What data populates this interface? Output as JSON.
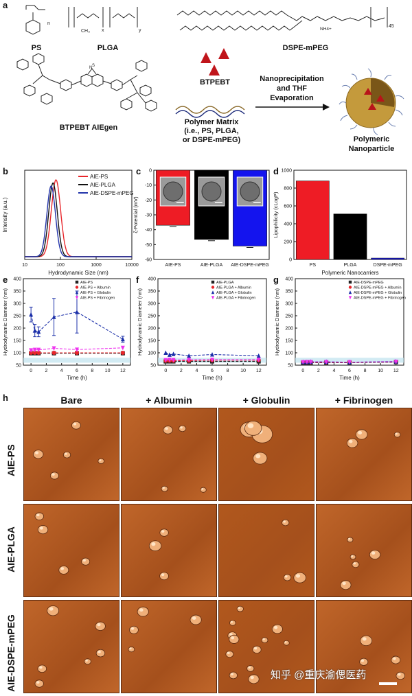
{
  "panel_a": {
    "letter": "a",
    "ps_label": "PS",
    "plga_label": "PLGA",
    "dspe_label": "DSPE-mPEG",
    "btpebt_mol_label": "BTPEBT AIEgen",
    "btpebt_label": "BTPEBT",
    "polymer_matrix_label": "Polymer Matrix",
    "polymer_matrix_sub1": "(i.e., PS, PLGA,",
    "polymer_matrix_sub2": "or DSPE-mPEG)",
    "process_label1": "Nanoprecipitation",
    "process_label2": "and THF",
    "process_label3": "Evaporation",
    "product_label1": "Polymeric",
    "product_label2": "Nanoparticle",
    "peg_repeat": "45",
    "nh4": "NH4+"
  },
  "chart_data": [
    {
      "id": "b",
      "type": "line",
      "xlabel": "Hydrodynamic Size (nm)",
      "ylabel": "Intensity (a.u.)",
      "xscale": "log",
      "xlim": [
        10,
        10000
      ],
      "xticks": [
        "10",
        "100",
        "1000",
        "10000"
      ],
      "legend": "top-right",
      "series": [
        {
          "name": "AIE-PS",
          "color": "#e8262b",
          "peak": 75,
          "width": 0.13,
          "height": 1.0
        },
        {
          "name": "AIE-PLGA",
          "color": "#111111",
          "peak": 62,
          "width": 0.12,
          "height": 0.96
        },
        {
          "name": "AIE-DSPE-mPEG",
          "color": "#2233aa",
          "peak": 55,
          "width": 0.12,
          "height": 0.92
        }
      ]
    },
    {
      "id": "c",
      "type": "bar",
      "ylabel": "ζ-Potential (mV)",
      "ylim": [
        -60,
        0
      ],
      "yticks": [
        "0",
        "-10",
        "-20",
        "-30",
        "-40",
        "-50",
        "-60"
      ],
      "categories": [
        "AIE-PS",
        "AIE-PLGA",
        "AIE-DSPE-mPEG"
      ],
      "values": [
        -37,
        -46.5,
        -51
      ],
      "colors": [
        "#ee1c25",
        "#000000",
        "#1414ee"
      ]
    },
    {
      "id": "d",
      "type": "bar",
      "ylabel": "Lipophilicity (cLogP)",
      "xlabel": "Polymeric Nanocarriers",
      "ylim": [
        0,
        1000
      ],
      "yticks": [
        "0",
        "200",
        "400",
        "600",
        "800",
        "1000"
      ],
      "categories": [
        "PS",
        "PLGA",
        "DSPE-mPEG"
      ],
      "values": [
        880,
        510,
        15
      ],
      "colors": [
        "#ee1c25",
        "#000000",
        "#1414ee"
      ]
    },
    {
      "id": "e",
      "type": "line",
      "xlabel": "Time (h)",
      "ylabel": "Hydrodynamic Diameter (nm)",
      "xlim": [
        -1,
        13
      ],
      "ylim": [
        50,
        400
      ],
      "xticks": [
        0,
        2,
        4,
        6,
        8,
        10,
        12
      ],
      "yticks": [
        50,
        100,
        150,
        200,
        250,
        300,
        350,
        400
      ],
      "legend": "top-right",
      "x": [
        0,
        0.5,
        1,
        3,
        6,
        12
      ],
      "series": [
        {
          "name": "AIE-PS",
          "color": "#222222",
          "marker": "square",
          "values": [
            98,
            98,
            98,
            98,
            98,
            98
          ]
        },
        {
          "name": "AIE-PS + Albumin",
          "color": "#e8262b",
          "marker": "circle",
          "values": [
            100,
            100,
            100,
            100,
            100,
            100
          ]
        },
        {
          "name": "AIE-PS + Globulin",
          "color": "#1a2ea8",
          "marker": "triangle",
          "values": [
            255,
            190,
            185,
            245,
            265,
            155
          ],
          "errors": [
            30,
            25,
            20,
            75,
            85,
            12
          ]
        },
        {
          "name": "AIE-PS + Fibrinogen",
          "color": "#ee33ee",
          "marker": "triangle-down",
          "values": [
            110,
            112,
            112,
            118,
            113,
            120
          ]
        }
      ]
    },
    {
      "id": "f",
      "type": "line",
      "xlabel": "Time (h)",
      "ylabel": "Hydrodynamic Diameter (nm)",
      "xlim": [
        -1,
        13
      ],
      "ylim": [
        50,
        400
      ],
      "xticks": [
        0,
        2,
        4,
        6,
        8,
        10,
        12
      ],
      "yticks": [
        50,
        100,
        150,
        200,
        250,
        300,
        350,
        400
      ],
      "legend": "top-right",
      "x": [
        0,
        0.5,
        1,
        3,
        6,
        12
      ],
      "series": [
        {
          "name": "AIE-PLGA",
          "color": "#222222",
          "marker": "square",
          "values": [
            65,
            65,
            65,
            65,
            65,
            65
          ]
        },
        {
          "name": "AIE-PLGA + Albumin",
          "color": "#e8262b",
          "marker": "circle",
          "values": [
            68,
            68,
            68,
            68,
            70,
            70
          ]
        },
        {
          "name": "AIE-PLGA + Globulin",
          "color": "#1a2ea8",
          "marker": "triangle",
          "values": [
            100,
            92,
            95,
            88,
            93,
            88
          ]
        },
        {
          "name": "AIE-PLGA + Fibrinogen",
          "color": "#ee33ee",
          "marker": "triangle-down",
          "values": [
            70,
            72,
            71,
            72,
            72,
            72
          ]
        }
      ]
    },
    {
      "id": "g",
      "type": "line",
      "xlabel": "Time (h)",
      "ylabel": "Hydrodynamic Diameter (nm)",
      "xlim": [
        -1,
        13
      ],
      "ylim": [
        50,
        400
      ],
      "xticks": [
        0,
        2,
        4,
        6,
        8,
        10,
        12
      ],
      "yticks": [
        50,
        100,
        150,
        200,
        250,
        300,
        350,
        400
      ],
      "legend": "top-right",
      "x": [
        0,
        0.5,
        1,
        3,
        6,
        12
      ],
      "series": [
        {
          "name": "AIE-DSPE-mPEG",
          "color": "#222222",
          "marker": "square",
          "values": [
            60,
            60,
            60,
            60,
            60,
            62
          ]
        },
        {
          "name": "AIE-DSPE-mPEG + Albumin",
          "color": "#e8262b",
          "marker": "circle",
          "values": [
            62,
            62,
            62,
            62,
            62,
            64
          ]
        },
        {
          "name": "AIE-DSPE-mPEG + Globulin",
          "color": "#1a2ea8",
          "marker": "triangle",
          "values": [
            63,
            63,
            64,
            64,
            62,
            65
          ]
        },
        {
          "name": "AIE-DSPE-mPEG + Fibrinogen",
          "color": "#ee33ee",
          "marker": "triangle-down",
          "values": [
            62,
            63,
            63,
            63,
            62,
            64
          ]
        }
      ]
    }
  ],
  "panel_h": {
    "letter": "h",
    "columns": [
      "Bare",
      "+ Albumin",
      "+ Globulin",
      "+ Fibrinogen"
    ],
    "rows": [
      "AIE-PS",
      "AIE-PLGA",
      "AIE-DSPE-mPEG"
    ]
  },
  "watermark": "知乎 @重庆渝偲医药"
}
